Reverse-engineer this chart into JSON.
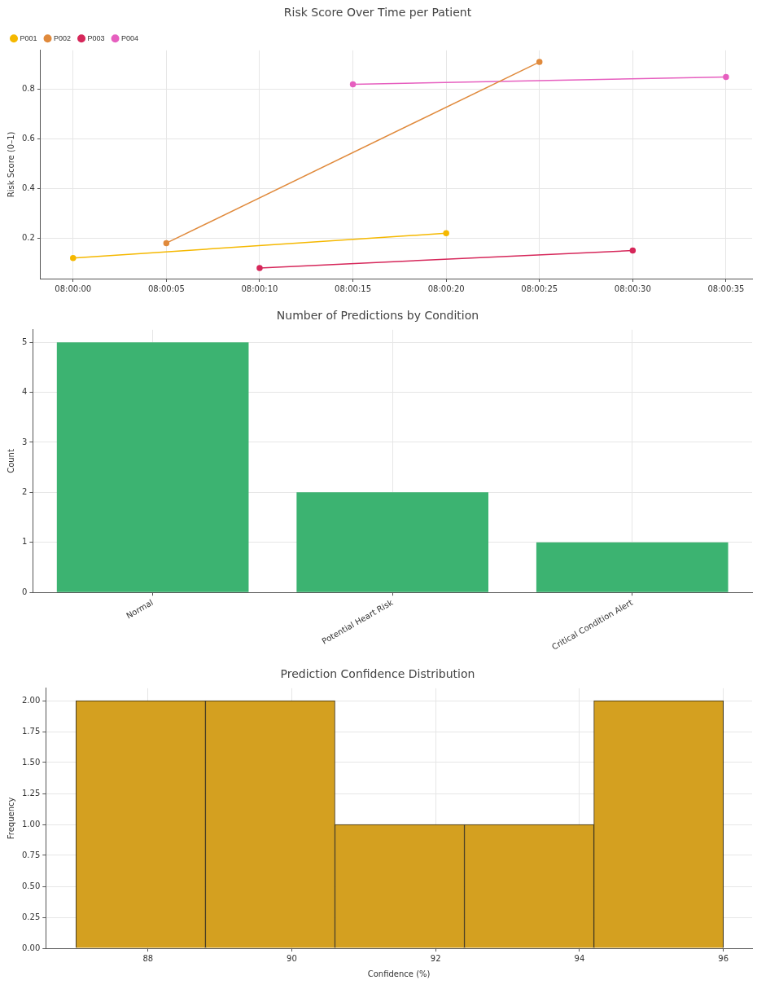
{
  "chart_data": [
    {
      "type": "line",
      "title": "Risk Score Over Time per Patient",
      "ylabel": "Risk Score (0–1)",
      "legend": "top left",
      "marker": "circle",
      "grid": true,
      "xlim": [
        7.9995167,
        8.0101111
      ],
      "ylim": [
        0.037,
        0.957
      ],
      "xticks": [
        {
          "value": 8,
          "label": "08:00:00"
        },
        {
          "value": 8.0013889,
          "label": "08:00:05"
        },
        {
          "value": 8.0027778,
          "label": "08:00:10"
        },
        {
          "value": 8.0041667,
          "label": "08:00:15"
        },
        {
          "value": 8.0055556,
          "label": "08:00:20"
        },
        {
          "value": 8.0069444,
          "label": "08:00:25"
        },
        {
          "value": 8.0083333,
          "label": "08:00:30"
        },
        {
          "value": 8.0097222,
          "label": "08:00:35"
        }
      ],
      "yticks": [
        0.2,
        0.4,
        0.6,
        0.8
      ],
      "series": [
        {
          "name": "P001",
          "color": "#f5b800",
          "x": [
            8,
            8.0055556
          ],
          "values": [
            0.12,
            0.22
          ]
        },
        {
          "name": "P002",
          "color": "#e08a3c",
          "x": [
            8.0013889,
            8.0069444
          ],
          "values": [
            0.18,
            0.91
          ]
        },
        {
          "name": "P003",
          "color": "#d6275a",
          "x": [
            8.0027778,
            8.0083333
          ],
          "values": [
            0.08,
            0.15
          ]
        },
        {
          "name": "P004",
          "color": "#e65fbf",
          "x": [
            8.0041667,
            8.0097222
          ],
          "values": [
            0.82,
            0.85
          ]
        }
      ]
    },
    {
      "type": "bar",
      "title": "Number of Predictions by Condition",
      "ylabel": "Count",
      "grid": true,
      "categories": [
        "Normal",
        "Potential Heart Risk",
        "Critical Condition Alert"
      ],
      "values": [
        5,
        2,
        1
      ],
      "color": "#3cb371",
      "ylim": [
        0,
        5.25
      ],
      "yticks": [
        0,
        1,
        2,
        3,
        4,
        5
      ]
    },
    {
      "type": "histogram",
      "title": "Prediction Confidence Distribution",
      "xlabel": "Confidence (%)",
      "ylabel": "Frequency",
      "grid": true,
      "bins": [
        87,
        88.8,
        90.6,
        92.4,
        94.2,
        96
      ],
      "values": [
        2,
        2,
        1,
        1,
        2
      ],
      "color": "#d4a020",
      "xlim": [
        86.58,
        96.4
      ],
      "ylim": [
        0,
        2.1
      ],
      "xticks": [
        88,
        90,
        92,
        94,
        96
      ],
      "yticks": [
        {
          "value": 0,
          "label": "0.00"
        },
        {
          "value": 0.25,
          "label": "0.25"
        },
        {
          "value": 0.5,
          "label": "0.50"
        },
        {
          "value": 0.75,
          "label": "0.75"
        },
        {
          "value": 1,
          "label": "1.00"
        },
        {
          "value": 1.25,
          "label": "1.25"
        },
        {
          "value": 1.5,
          "label": "1.50"
        },
        {
          "value": 1.75,
          "label": "1.75"
        },
        {
          "value": 2,
          "label": "2.00"
        }
      ]
    }
  ]
}
